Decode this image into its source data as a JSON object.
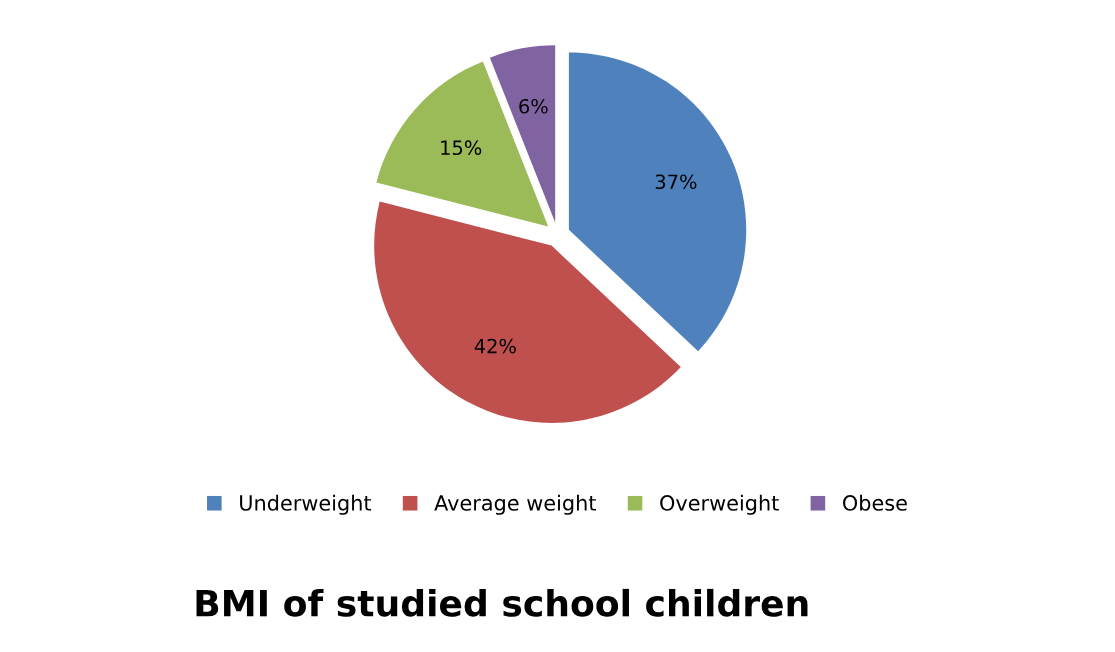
{
  "chart_data": {
    "type": "pie",
    "title": "BMI of studied school children",
    "categories": [
      "Underweight",
      "Average weight",
      "Overweight",
      "Obese"
    ],
    "values": [
      37,
      42,
      15,
      6
    ],
    "value_labels": [
      "37%",
      "42%",
      "15%",
      "6%"
    ],
    "colors": [
      "#4f81bd",
      "#c0504d",
      "#9bbb59",
      "#8064a2"
    ],
    "legend": "bottom"
  }
}
